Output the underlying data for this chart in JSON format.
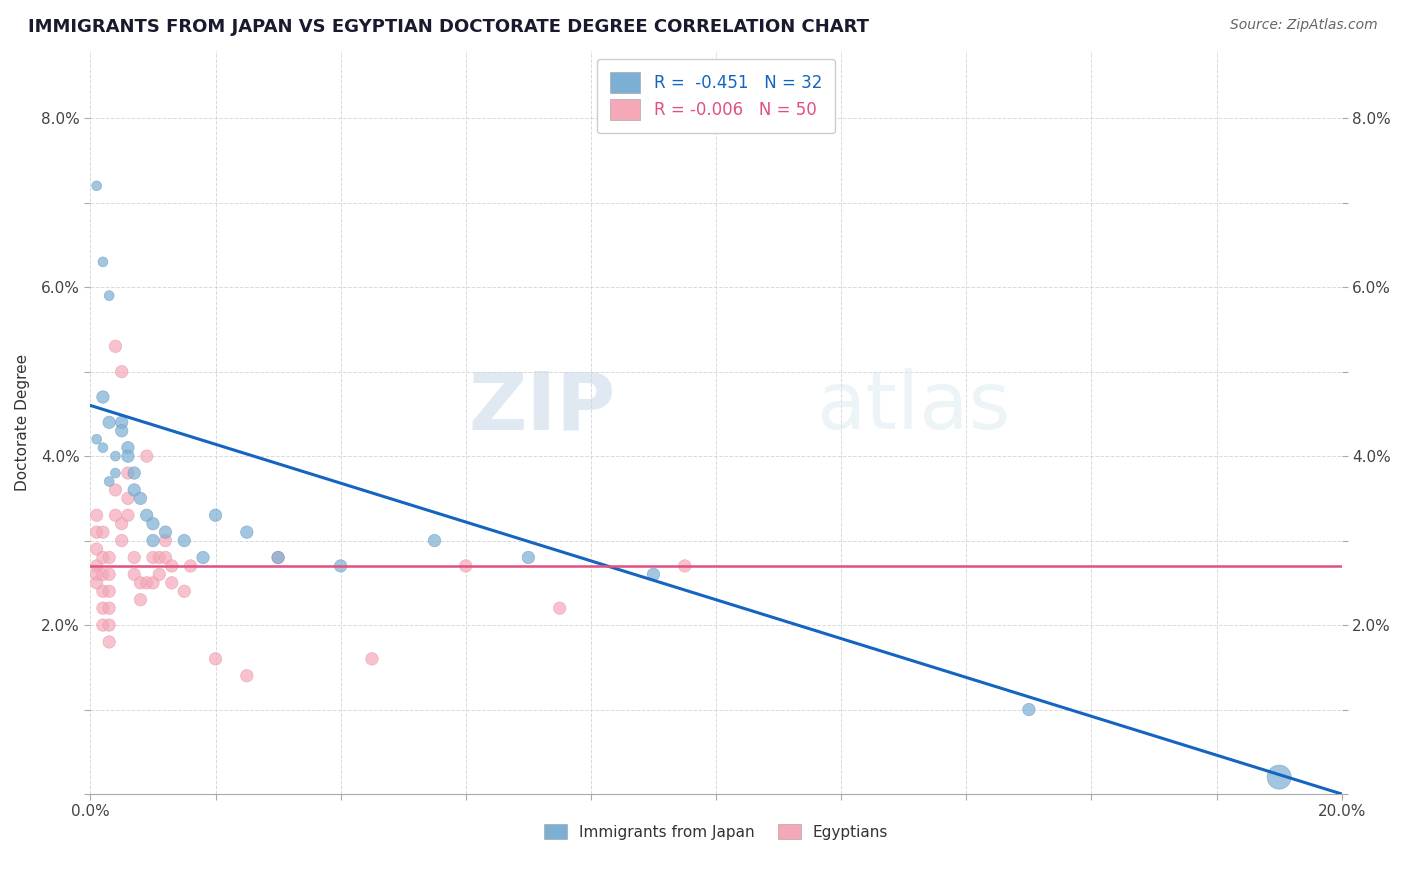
{
  "title": "IMMIGRANTS FROM JAPAN VS EGYPTIAN DOCTORATE DEGREE CORRELATION CHART",
  "source": "Source: ZipAtlas.com",
  "xlabel": "",
  "ylabel": "Doctorate Degree",
  "xlim": [
    0.0,
    0.2
  ],
  "ylim": [
    0.0,
    0.088
  ],
  "japan_color": "#7cafd4",
  "egypt_color": "#f4a8b8",
  "japan_line_color": "#1565c0",
  "egypt_line_color": "#e05080",
  "grid_color": "#d0d0d0",
  "background_color": "#ffffff",
  "legend_R_japan": "R =  -0.451   N = 32",
  "legend_R_egypt": "R = -0.006   N = 50",
  "japan_scatter": [
    [
      0.001,
      0.072
    ],
    [
      0.002,
      0.063
    ],
    [
      0.003,
      0.059
    ],
    [
      0.002,
      0.047
    ],
    [
      0.003,
      0.044
    ],
    [
      0.001,
      0.042
    ],
    [
      0.002,
      0.041
    ],
    [
      0.004,
      0.04
    ],
    [
      0.004,
      0.038
    ],
    [
      0.003,
      0.037
    ],
    [
      0.005,
      0.044
    ],
    [
      0.005,
      0.043
    ],
    [
      0.006,
      0.041
    ],
    [
      0.006,
      0.04
    ],
    [
      0.007,
      0.038
    ],
    [
      0.007,
      0.036
    ],
    [
      0.008,
      0.035
    ],
    [
      0.009,
      0.033
    ],
    [
      0.01,
      0.032
    ],
    [
      0.01,
      0.03
    ],
    [
      0.012,
      0.031
    ],
    [
      0.015,
      0.03
    ],
    [
      0.018,
      0.028
    ],
    [
      0.02,
      0.033
    ],
    [
      0.025,
      0.031
    ],
    [
      0.03,
      0.028
    ],
    [
      0.04,
      0.027
    ],
    [
      0.055,
      0.03
    ],
    [
      0.07,
      0.028
    ],
    [
      0.09,
      0.026
    ],
    [
      0.15,
      0.01
    ],
    [
      0.19,
      0.002
    ]
  ],
  "japan_sizes": [
    50,
    50,
    50,
    80,
    80,
    50,
    50,
    50,
    50,
    50,
    80,
    80,
    80,
    80,
    80,
    80,
    80,
    80,
    80,
    80,
    80,
    80,
    80,
    80,
    80,
    80,
    80,
    80,
    80,
    80,
    80,
    300
  ],
  "egypt_scatter": [
    [
      0.001,
      0.033
    ],
    [
      0.001,
      0.031
    ],
    [
      0.001,
      0.029
    ],
    [
      0.001,
      0.027
    ],
    [
      0.001,
      0.026
    ],
    [
      0.001,
      0.025
    ],
    [
      0.002,
      0.031
    ],
    [
      0.002,
      0.028
    ],
    [
      0.002,
      0.026
    ],
    [
      0.002,
      0.024
    ],
    [
      0.002,
      0.022
    ],
    [
      0.002,
      0.02
    ],
    [
      0.003,
      0.028
    ],
    [
      0.003,
      0.026
    ],
    [
      0.003,
      0.024
    ],
    [
      0.003,
      0.022
    ],
    [
      0.003,
      0.02
    ],
    [
      0.003,
      0.018
    ],
    [
      0.004,
      0.053
    ],
    [
      0.004,
      0.036
    ],
    [
      0.004,
      0.033
    ],
    [
      0.005,
      0.05
    ],
    [
      0.005,
      0.032
    ],
    [
      0.005,
      0.03
    ],
    [
      0.006,
      0.038
    ],
    [
      0.006,
      0.035
    ],
    [
      0.006,
      0.033
    ],
    [
      0.007,
      0.028
    ],
    [
      0.007,
      0.026
    ],
    [
      0.008,
      0.025
    ],
    [
      0.008,
      0.023
    ],
    [
      0.009,
      0.04
    ],
    [
      0.009,
      0.025
    ],
    [
      0.01,
      0.028
    ],
    [
      0.01,
      0.025
    ],
    [
      0.011,
      0.028
    ],
    [
      0.011,
      0.026
    ],
    [
      0.012,
      0.03
    ],
    [
      0.012,
      0.028
    ],
    [
      0.013,
      0.027
    ],
    [
      0.013,
      0.025
    ],
    [
      0.015,
      0.024
    ],
    [
      0.016,
      0.027
    ],
    [
      0.02,
      0.016
    ],
    [
      0.025,
      0.014
    ],
    [
      0.03,
      0.028
    ],
    [
      0.045,
      0.016
    ],
    [
      0.06,
      0.027
    ],
    [
      0.075,
      0.022
    ],
    [
      0.095,
      0.027
    ]
  ],
  "egypt_sizes": [
    80,
    80,
    80,
    80,
    80,
    80,
    80,
    80,
    80,
    80,
    80,
    80,
    80,
    80,
    80,
    80,
    80,
    80,
    80,
    80,
    80,
    80,
    80,
    80,
    80,
    80,
    80,
    80,
    80,
    80,
    80,
    80,
    80,
    80,
    80,
    80,
    80,
    80,
    80,
    80,
    80,
    80,
    80,
    80,
    80,
    80,
    80,
    80,
    80,
    80
  ],
  "japan_trendline_x": [
    0.0,
    0.2
  ],
  "japan_trendline_y": [
    0.046,
    0.0
  ],
  "egypt_trendline_x": [
    0.0,
    0.2
  ],
  "egypt_trendline_y": [
    0.027,
    0.027
  ],
  "watermark_zip": "ZIP",
  "watermark_atlas": "atlas",
  "legend_bottom_label_japan": "Immigrants from Japan",
  "legend_bottom_label_egypt": "Egyptians"
}
